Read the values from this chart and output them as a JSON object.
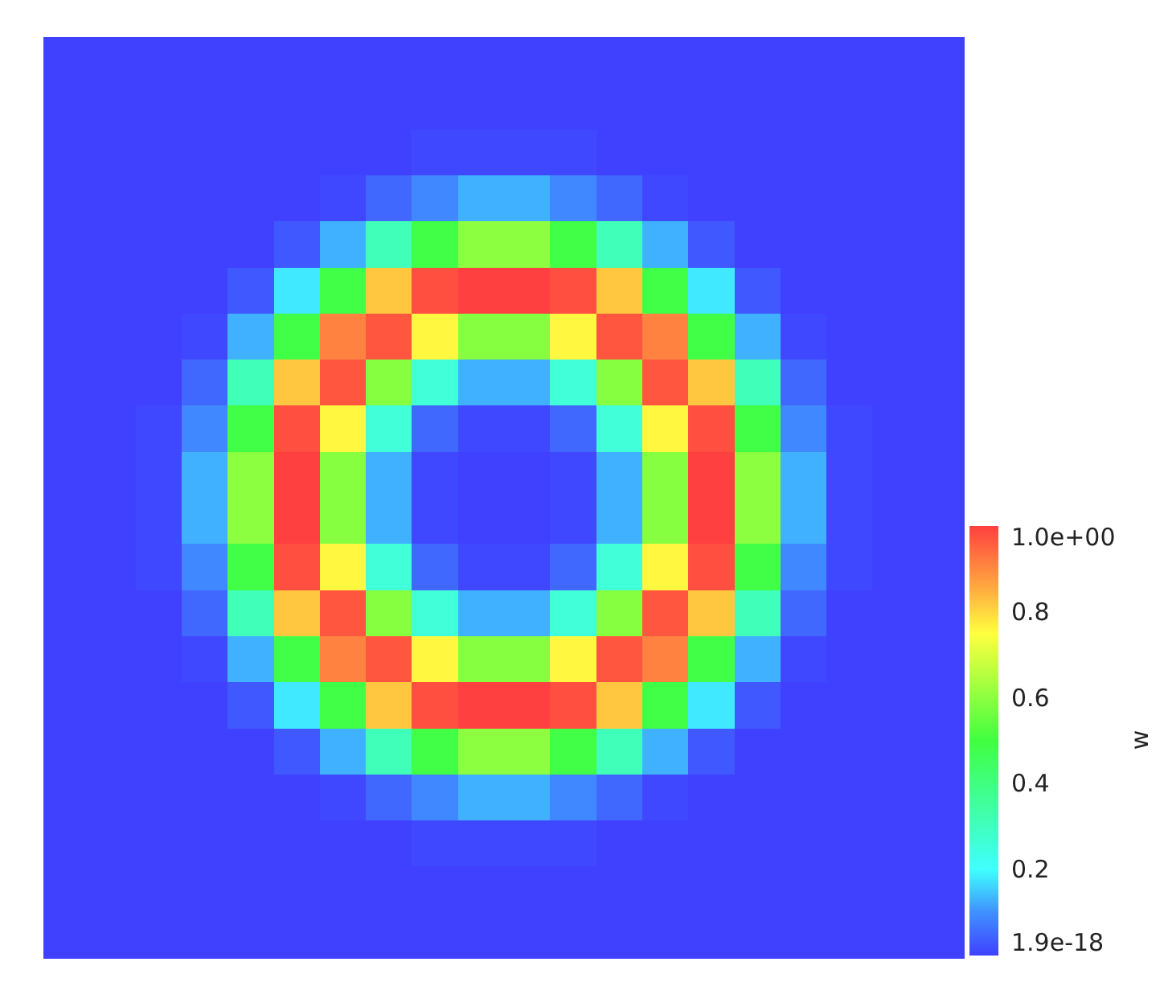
{
  "chart_data": {
    "type": "heatmap",
    "clabel": "w",
    "tick_labels": false,
    "categories": [
      null,
      null,
      null,
      null,
      null,
      null,
      null,
      null,
      null,
      null,
      null,
      null,
      null,
      null,
      null,
      null,
      null,
      null,
      null,
      null
    ],
    "y_categories": [
      null,
      null,
      null,
      null,
      null,
      null,
      null,
      null,
      null,
      null,
      null,
      null,
      null,
      null,
      null,
      null,
      null,
      null,
      null,
      null
    ],
    "clim": [
      1.9e-18,
      1
    ],
    "cticks": [
      1.9e-18,
      0.2,
      0.4,
      0.6,
      0.8,
      {
        "value": 1,
        "label": "1.0e+00"
      }
    ],
    "cells": [
      [
        1.9e-18,
        1.9e-18,
        1.9e-18,
        1.9e-18,
        1.9e-18,
        1.9e-18,
        1.9e-18,
        1.9e-18,
        1.9e-18,
        1.9e-18,
        1.9e-18,
        1.9e-18,
        1.9e-18,
        1.9e-18,
        1.9e-18,
        1.9e-18,
        1.9e-18,
        1.9e-18,
        1.9e-18,
        1.9e-18
      ],
      [
        1.9e-18,
        1.9e-18,
        1.9e-18,
        1.9e-18,
        1.9e-18,
        1.9e-18,
        1.9e-18,
        1.9e-18,
        1.9e-18,
        1.9e-18,
        1.9e-18,
        1.9e-18,
        1.9e-18,
        1.9e-18,
        1.9e-18,
        1.9e-18,
        1.9e-18,
        1.9e-18,
        1.9e-18,
        1.9e-18
      ],
      [
        1.9e-18,
        1.9e-18,
        1.9e-18,
        1.9e-18,
        1.9e-18,
        1.9e-18,
        1.9e-18,
        1.9e-18,
        0.01,
        0.01,
        0.01,
        0.01,
        1.9e-18,
        1.9e-18,
        1.9e-18,
        1.9e-18,
        1.9e-18,
        1.9e-18,
        1.9e-18,
        1.9e-18
      ],
      [
        1.9e-18,
        1.9e-18,
        1.9e-18,
        1.9e-18,
        1.9e-18,
        1.9e-18,
        0.01,
        0.05,
        0.09,
        0.13,
        0.13,
        0.09,
        0.05,
        0.01,
        1.9e-18,
        1.9e-18,
        1.9e-18,
        1.9e-18,
        1.9e-18,
        1.9e-18
      ],
      [
        1.9e-18,
        1.9e-18,
        1.9e-18,
        1.9e-18,
        1.9e-18,
        0.03,
        0.13,
        0.31,
        0.49,
        0.6,
        0.6,
        0.49,
        0.31,
        0.13,
        0.03,
        1.9e-18,
        1.9e-18,
        1.9e-18,
        1.9e-18,
        1.9e-18
      ],
      [
        1.9e-18,
        1.9e-18,
        1.9e-18,
        1.9e-18,
        0.03,
        0.18,
        0.49,
        0.82,
        0.98,
        1,
        1,
        0.98,
        0.82,
        0.49,
        0.18,
        0.03,
        1.9e-18,
        1.9e-18,
        1.9e-18,
        1.9e-18
      ],
      [
        1.9e-18,
        1.9e-18,
        1.9e-18,
        0.01,
        0.13,
        0.49,
        0.91,
        0.97,
        0.76,
        0.59,
        0.59,
        0.76,
        0.97,
        0.91,
        0.49,
        0.13,
        0.01,
        1.9e-18,
        1.9e-18,
        1.9e-18
      ],
      [
        1.9e-18,
        1.9e-18,
        1.9e-18,
        0.05,
        0.31,
        0.82,
        0.97,
        0.59,
        0.26,
        0.13,
        0.13,
        0.26,
        0.59,
        0.97,
        0.82,
        0.31,
        0.05,
        1.9e-18,
        1.9e-18,
        1.9e-18
      ],
      [
        1.9e-18,
        1.9e-18,
        0.01,
        0.09,
        0.49,
        0.98,
        0.76,
        0.26,
        0.05,
        0.01,
        0.01,
        0.05,
        0.26,
        0.76,
        0.98,
        0.49,
        0.09,
        0.01,
        1.9e-18,
        1.9e-18
      ],
      [
        1.9e-18,
        1.9e-18,
        0.01,
        0.13,
        0.6,
        1,
        0.59,
        0.13,
        0.01,
        1.9e-18,
        1.9e-18,
        0.01,
        0.13,
        0.59,
        1,
        0.6,
        0.13,
        0.01,
        1.9e-18,
        1.9e-18
      ],
      [
        1.9e-18,
        1.9e-18,
        0.01,
        0.13,
        0.6,
        1,
        0.59,
        0.13,
        0.01,
        1.9e-18,
        1.9e-18,
        0.01,
        0.13,
        0.59,
        1,
        0.6,
        0.13,
        0.01,
        1.9e-18,
        1.9e-18
      ],
      [
        1.9e-18,
        1.9e-18,
        0.01,
        0.09,
        0.49,
        0.98,
        0.76,
        0.26,
        0.05,
        0.01,
        0.01,
        0.05,
        0.26,
        0.76,
        0.98,
        0.49,
        0.09,
        0.01,
        1.9e-18,
        1.9e-18
      ],
      [
        1.9e-18,
        1.9e-18,
        1.9e-18,
        0.05,
        0.31,
        0.82,
        0.97,
        0.59,
        0.26,
        0.13,
        0.13,
        0.26,
        0.59,
        0.97,
        0.82,
        0.31,
        0.05,
        1.9e-18,
        1.9e-18,
        1.9e-18
      ],
      [
        1.9e-18,
        1.9e-18,
        1.9e-18,
        0.01,
        0.13,
        0.49,
        0.91,
        0.97,
        0.76,
        0.59,
        0.59,
        0.76,
        0.97,
        0.91,
        0.49,
        0.13,
        0.01,
        1.9e-18,
        1.9e-18,
        1.9e-18
      ],
      [
        1.9e-18,
        1.9e-18,
        1.9e-18,
        1.9e-18,
        0.03,
        0.18,
        0.49,
        0.82,
        0.98,
        1,
        1,
        0.98,
        0.82,
        0.49,
        0.18,
        0.03,
        1.9e-18,
        1.9e-18,
        1.9e-18,
        1.9e-18
      ],
      [
        1.9e-18,
        1.9e-18,
        1.9e-18,
        1.9e-18,
        1.9e-18,
        0.03,
        0.13,
        0.31,
        0.49,
        0.6,
        0.6,
        0.49,
        0.31,
        0.13,
        0.03,
        1.9e-18,
        1.9e-18,
        1.9e-18,
        1.9e-18,
        1.9e-18
      ],
      [
        1.9e-18,
        1.9e-18,
        1.9e-18,
        1.9e-18,
        1.9e-18,
        1.9e-18,
        0.01,
        0.05,
        0.09,
        0.13,
        0.13,
        0.09,
        0.05,
        0.01,
        1.9e-18,
        1.9e-18,
        1.9e-18,
        1.9e-18,
        1.9e-18,
        1.9e-18
      ],
      [
        1.9e-18,
        1.9e-18,
        1.9e-18,
        1.9e-18,
        1.9e-18,
        1.9e-18,
        1.9e-18,
        1.9e-18,
        0.01,
        0.01,
        0.01,
        0.01,
        1.9e-18,
        1.9e-18,
        1.9e-18,
        1.9e-18,
        1.9e-18,
        1.9e-18,
        1.9e-18,
        1.9e-18
      ],
      [
        1.9e-18,
        1.9e-18,
        1.9e-18,
        1.9e-18,
        1.9e-18,
        1.9e-18,
        1.9e-18,
        1.9e-18,
        1.9e-18,
        1.9e-18,
        1.9e-18,
        1.9e-18,
        1.9e-18,
        1.9e-18,
        1.9e-18,
        1.9e-18,
        1.9e-18,
        1.9e-18,
        1.9e-18,
        1.9e-18
      ],
      [
        1.9e-18,
        1.9e-18,
        1.9e-18,
        1.9e-18,
        1.9e-18,
        1.9e-18,
        1.9e-18,
        1.9e-18,
        1.9e-18,
        1.9e-18,
        1.9e-18,
        1.9e-18,
        1.9e-18,
        1.9e-18,
        1.9e-18,
        1.9e-18,
        1.9e-18,
        1.9e-18,
        1.9e-18,
        1.9e-18
      ]
    ]
  }
}
